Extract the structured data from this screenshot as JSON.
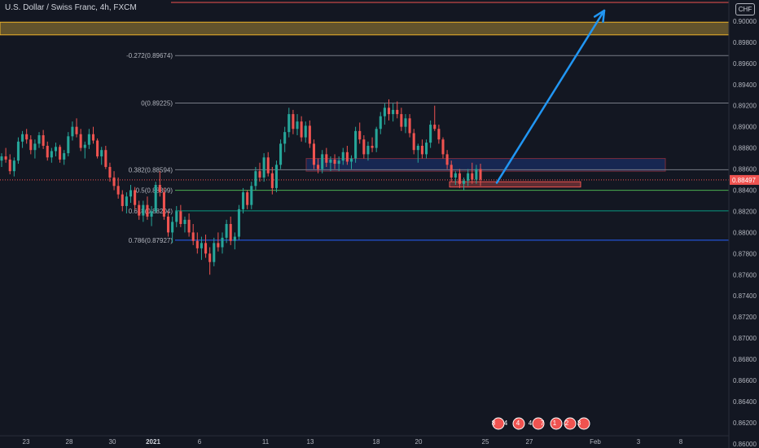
{
  "header": {
    "title": "U.S. Dollar / Swiss Franc, 4h, FXCM",
    "currency_badge": "CHF"
  },
  "price_axis": {
    "ticks": [
      "0.90000",
      "0.89800",
      "0.89600",
      "0.89400",
      "0.89200",
      "0.89000",
      "0.88800",
      "0.88600",
      "0.88400",
      "0.88200",
      "0.88000",
      "0.87800",
      "0.87600",
      "0.87400",
      "0.87200",
      "0.87000",
      "0.86800",
      "0.86600",
      "0.86400",
      "0.86200",
      "0.86000"
    ],
    "current_price": "0.88497",
    "current_color": "#ef5350"
  },
  "time_axis": {
    "labels": [
      {
        "text": "23",
        "bold": false
      },
      {
        "text": "28",
        "bold": false
      },
      {
        "text": "30",
        "bold": false
      },
      {
        "text": "2021",
        "bold": true
      },
      {
        "text": "6",
        "bold": false
      },
      {
        "text": "11",
        "bold": false
      },
      {
        "text": "13",
        "bold": false
      },
      {
        "text": "18",
        "bold": false
      },
      {
        "text": "20",
        "bold": false
      },
      {
        "text": "25",
        "bold": false
      },
      {
        "text": "27",
        "bold": false
      },
      {
        "text": "Feb",
        "bold": false
      },
      {
        "text": "3",
        "bold": false
      },
      {
        "text": "8",
        "bold": false
      }
    ]
  },
  "fib_levels": [
    {
      "label": "-0.272(0.89674)",
      "price": 0.89674
    },
    {
      "label": "0(0.89225)",
      "price": 0.89225
    },
    {
      "label": "0.382(0.88594)",
      "price": 0.88594
    },
    {
      "label": "0.5(0.88399)",
      "price": 0.88399
    },
    {
      "label": "0.618(0.88204)",
      "price": 0.88204
    },
    {
      "label": "0.786(0.87927)",
      "price": 0.87927
    }
  ],
  "event_badges": [
    "8",
    "4",
    "4",
    "4",
    "7",
    "1",
    "2",
    "3"
  ],
  "colors": {
    "up": "#26a69a",
    "down": "#ef5350",
    "arrow": "#2196f3",
    "zone_top": "#f0b429",
    "zone_blue": "#2962ff",
    "zone_red": "#ef5350"
  },
  "chart_data": {
    "type": "candlestick",
    "symbol": "U.S. Dollar / Swiss Franc",
    "timeframe": "4h",
    "source": "FXCM",
    "ylim": [
      0.8596,
      0.902
    ],
    "current_price": 0.88497,
    "fibonacci": [
      {
        "ratio": -0.272,
        "price": 0.89674
      },
      {
        "ratio": 0,
        "price": 0.89225
      },
      {
        "ratio": 0.382,
        "price": 0.88594
      },
      {
        "ratio": 0.5,
        "price": 0.88399
      },
      {
        "ratio": 0.618,
        "price": 0.88204
      },
      {
        "ratio": 0.786,
        "price": 0.87927
      }
    ],
    "zones": [
      {
        "name": "resistance",
        "y0": 0.8987,
        "y1": 0.8999
      },
      {
        "name": "supply",
        "y0": 0.8858,
        "y1": 0.887
      },
      {
        "name": "demand",
        "y0": 0.8843,
        "y1": 0.8848
      }
    ],
    "projection_arrow": {
      "from": 0.8847,
      "to": 0.901
    },
    "candles": [
      [
        0.8868,
        0.8875,
        0.8862,
        0.8872
      ],
      [
        0.8872,
        0.888,
        0.8866,
        0.8869
      ],
      [
        0.8869,
        0.8874,
        0.8855,
        0.8858
      ],
      [
        0.8858,
        0.8871,
        0.8853,
        0.8868
      ],
      [
        0.8868,
        0.889,
        0.8865,
        0.8886
      ],
      [
        0.8886,
        0.8896,
        0.888,
        0.8893
      ],
      [
        0.8893,
        0.8898,
        0.8884,
        0.8888
      ],
      [
        0.8888,
        0.8892,
        0.8874,
        0.8878
      ],
      [
        0.8878,
        0.8888,
        0.887,
        0.8884
      ],
      [
        0.8884,
        0.8895,
        0.888,
        0.8892
      ],
      [
        0.8892,
        0.8897,
        0.8879,
        0.8882
      ],
      [
        0.8882,
        0.8886,
        0.8868,
        0.8871
      ],
      [
        0.8871,
        0.888,
        0.8866,
        0.8877
      ],
      [
        0.8877,
        0.8885,
        0.8872,
        0.8881
      ],
      [
        0.8881,
        0.8883,
        0.8866,
        0.8869
      ],
      [
        0.8869,
        0.8878,
        0.8864,
        0.8875
      ],
      [
        0.8875,
        0.8895,
        0.8872,
        0.8891
      ],
      [
        0.8891,
        0.8905,
        0.8887,
        0.89
      ],
      [
        0.89,
        0.8908,
        0.889,
        0.8893
      ],
      [
        0.8893,
        0.8898,
        0.8877,
        0.888
      ],
      [
        0.888,
        0.8886,
        0.887,
        0.8883
      ],
      [
        0.8883,
        0.8898,
        0.8879,
        0.8893
      ],
      [
        0.8893,
        0.89,
        0.8884,
        0.8887
      ],
      [
        0.8887,
        0.8889,
        0.887,
        0.8872
      ],
      [
        0.8872,
        0.8881,
        0.8864,
        0.8878
      ],
      [
        0.8878,
        0.8882,
        0.886,
        0.8862
      ],
      [
        0.8862,
        0.8866,
        0.8848,
        0.8852
      ],
      [
        0.8852,
        0.8858,
        0.884,
        0.8844
      ],
      [
        0.8844,
        0.8852,
        0.8832,
        0.8836
      ],
      [
        0.8836,
        0.884,
        0.882,
        0.8825
      ],
      [
        0.8825,
        0.8838,
        0.8818,
        0.8834
      ],
      [
        0.8834,
        0.8845,
        0.8828,
        0.884
      ],
      [
        0.884,
        0.8843,
        0.8822,
        0.8826
      ],
      [
        0.8826,
        0.883,
        0.8812,
        0.8816
      ],
      [
        0.8816,
        0.883,
        0.881,
        0.8826
      ],
      [
        0.8826,
        0.8834,
        0.8812,
        0.8815
      ],
      [
        0.8815,
        0.8825,
        0.8806,
        0.882
      ],
      [
        0.882,
        0.8848,
        0.8818,
        0.8845
      ],
      [
        0.8845,
        0.8858,
        0.8834,
        0.8838
      ],
      [
        0.8838,
        0.8842,
        0.8812,
        0.8815
      ],
      [
        0.8815,
        0.882,
        0.8796,
        0.88
      ],
      [
        0.88,
        0.8815,
        0.879,
        0.881
      ],
      [
        0.881,
        0.8825,
        0.8805,
        0.882
      ],
      [
        0.882,
        0.8826,
        0.8805,
        0.8808
      ],
      [
        0.8808,
        0.8815,
        0.88,
        0.8812
      ],
      [
        0.8812,
        0.8818,
        0.8796,
        0.88
      ],
      [
        0.88,
        0.8808,
        0.8788,
        0.8792
      ],
      [
        0.8792,
        0.88,
        0.878,
        0.8785
      ],
      [
        0.8785,
        0.8796,
        0.8774,
        0.879
      ],
      [
        0.879,
        0.8798,
        0.8776,
        0.878
      ],
      [
        0.878,
        0.8786,
        0.876,
        0.8772
      ],
      [
        0.8772,
        0.8795,
        0.8768,
        0.879
      ],
      [
        0.879,
        0.88,
        0.8782,
        0.8786
      ],
      [
        0.8786,
        0.88,
        0.878,
        0.8795
      ],
      [
        0.8795,
        0.8812,
        0.879,
        0.8808
      ],
      [
        0.8808,
        0.8815,
        0.8788,
        0.8792
      ],
      [
        0.8792,
        0.88,
        0.8784,
        0.8796
      ],
      [
        0.8796,
        0.8826,
        0.8793,
        0.8822
      ],
      [
        0.8822,
        0.8842,
        0.8818,
        0.8838
      ],
      [
        0.8838,
        0.884,
        0.8822,
        0.8826
      ],
      [
        0.8826,
        0.8848,
        0.8822,
        0.8844
      ],
      [
        0.8844,
        0.8862,
        0.884,
        0.8858
      ],
      [
        0.8858,
        0.8866,
        0.8848,
        0.8852
      ],
      [
        0.8852,
        0.8875,
        0.8848,
        0.8871
      ],
      [
        0.8871,
        0.8876,
        0.8853,
        0.8856
      ],
      [
        0.8856,
        0.8862,
        0.8836,
        0.8842
      ],
      [
        0.8842,
        0.8868,
        0.8838,
        0.8864
      ],
      [
        0.8864,
        0.8888,
        0.886,
        0.8884
      ],
      [
        0.8884,
        0.89,
        0.8876,
        0.8895
      ],
      [
        0.8895,
        0.8918,
        0.889,
        0.8912
      ],
      [
        0.8912,
        0.8916,
        0.8893,
        0.8898
      ],
      [
        0.8898,
        0.8912,
        0.8892,
        0.8905
      ],
      [
        0.8905,
        0.891,
        0.8886,
        0.889
      ],
      [
        0.889,
        0.8905,
        0.8885,
        0.8901
      ],
      [
        0.8901,
        0.8906,
        0.888,
        0.8884
      ],
      [
        0.8884,
        0.8888,
        0.886,
        0.8864
      ],
      [
        0.8864,
        0.887,
        0.8856,
        0.886
      ],
      [
        0.886,
        0.8878,
        0.8856,
        0.8874
      ],
      [
        0.8874,
        0.888,
        0.8862,
        0.8866
      ],
      [
        0.8866,
        0.8872,
        0.8858,
        0.8869
      ],
      [
        0.8869,
        0.8874,
        0.886,
        0.8865
      ],
      [
        0.8865,
        0.8872,
        0.8858,
        0.8868
      ],
      [
        0.8868,
        0.888,
        0.8864,
        0.8876
      ],
      [
        0.8876,
        0.8882,
        0.8864,
        0.8867
      ],
      [
        0.8867,
        0.8873,
        0.886,
        0.887
      ],
      [
        0.887,
        0.89,
        0.8866,
        0.8896
      ],
      [
        0.8896,
        0.8904,
        0.8884,
        0.8888
      ],
      [
        0.8888,
        0.8892,
        0.887,
        0.8874
      ],
      [
        0.8874,
        0.8886,
        0.8868,
        0.8882
      ],
      [
        0.8882,
        0.889,
        0.8876,
        0.888
      ],
      [
        0.888,
        0.89,
        0.8876,
        0.8898
      ],
      [
        0.8898,
        0.8914,
        0.8893,
        0.891
      ],
      [
        0.891,
        0.8922,
        0.8902,
        0.8918
      ],
      [
        0.8918,
        0.8926,
        0.8906,
        0.8912
      ],
      [
        0.8912,
        0.8922,
        0.8905,
        0.8916
      ],
      [
        0.8916,
        0.8924,
        0.8908,
        0.8912
      ],
      [
        0.8912,
        0.8918,
        0.8896,
        0.89
      ],
      [
        0.89,
        0.8912,
        0.8894,
        0.8908
      ],
      [
        0.8908,
        0.8912,
        0.889,
        0.8894
      ],
      [
        0.8894,
        0.8898,
        0.8874,
        0.8878
      ],
      [
        0.8878,
        0.8884,
        0.8866,
        0.8882
      ],
      [
        0.8882,
        0.8888,
        0.887,
        0.8874
      ],
      [
        0.8874,
        0.8888,
        0.887,
        0.8885
      ],
      [
        0.8885,
        0.8906,
        0.888,
        0.8902
      ],
      [
        0.8902,
        0.892,
        0.8896,
        0.8898
      ],
      [
        0.8898,
        0.8902,
        0.8884,
        0.8888
      ],
      [
        0.8888,
        0.889,
        0.887,
        0.8874
      ],
      [
        0.8874,
        0.8878,
        0.886,
        0.8864
      ],
      [
        0.8864,
        0.8868,
        0.8848,
        0.8852
      ],
      [
        0.8852,
        0.8858,
        0.8845,
        0.8856
      ],
      [
        0.8856,
        0.886,
        0.8842,
        0.8846
      ],
      [
        0.8846,
        0.8852,
        0.884,
        0.8849
      ],
      [
        0.8849,
        0.886,
        0.8844,
        0.8856
      ],
      [
        0.8856,
        0.8866,
        0.8846,
        0.885
      ],
      [
        0.885,
        0.8864,
        0.8846,
        0.886
      ],
      [
        0.886,
        0.8865,
        0.8844,
        0.885
      ]
    ]
  }
}
